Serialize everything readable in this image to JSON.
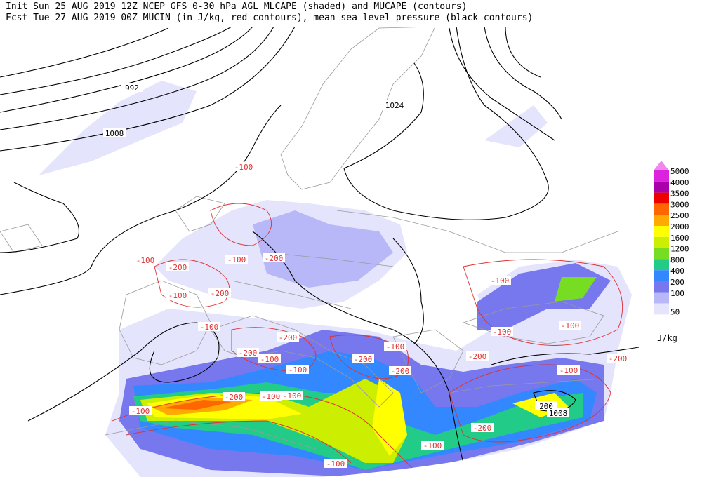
{
  "header": {
    "line1": "Init  Sun 25 AUG 2019 12Z  NCEP GFS 0-30 hPa AGL MLCAPE (shaded) and MUCAPE (contours)",
    "line2": "Fcst Tue 27 AUG 2019 00Z  MUCIN (in J/kg, red contours), mean sea level pressure (black contours)"
  },
  "legend": {
    "unit": "J/kg",
    "levels": [
      {
        "label": 5000,
        "color": "#dd22dd"
      },
      {
        "label": 4000,
        "color": "#aa00aa"
      },
      {
        "label": 3500,
        "color": "#ee0000"
      },
      {
        "label": 3000,
        "color": "#ff6600"
      },
      {
        "label": 2500,
        "color": "#ffaa00"
      },
      {
        "label": 2000,
        "color": "#ffff00"
      },
      {
        "label": 1600,
        "color": "#ccee00"
      },
      {
        "label": 1200,
        "color": "#77dd22"
      },
      {
        "label": 800,
        "color": "#22cc88"
      },
      {
        "label": 400,
        "color": "#3388ff"
      },
      {
        "label": 200,
        "color": "#7777ee"
      },
      {
        "label": 100,
        "color": "#b8b8f8"
      },
      {
        "label": 50,
        "color": "#e4e4fc"
      }
    ]
  },
  "map_labels": {
    "pressure": [
      "992",
      "1008",
      "1024",
      "1008"
    ],
    "cape": [
      "200"
    ],
    "cin": [
      "-100",
      "-200",
      "-100",
      "-200",
      "-100",
      "-200",
      "-100",
      "-100",
      "-200",
      "-100",
      "-200",
      "-100",
      "-100",
      "-200",
      "-100",
      "-100",
      "-200",
      "-100",
      "-200",
      "-100",
      "-100",
      "-200",
      "-100",
      "-200",
      "-100",
      "-100",
      "-100",
      "-200"
    ]
  }
}
